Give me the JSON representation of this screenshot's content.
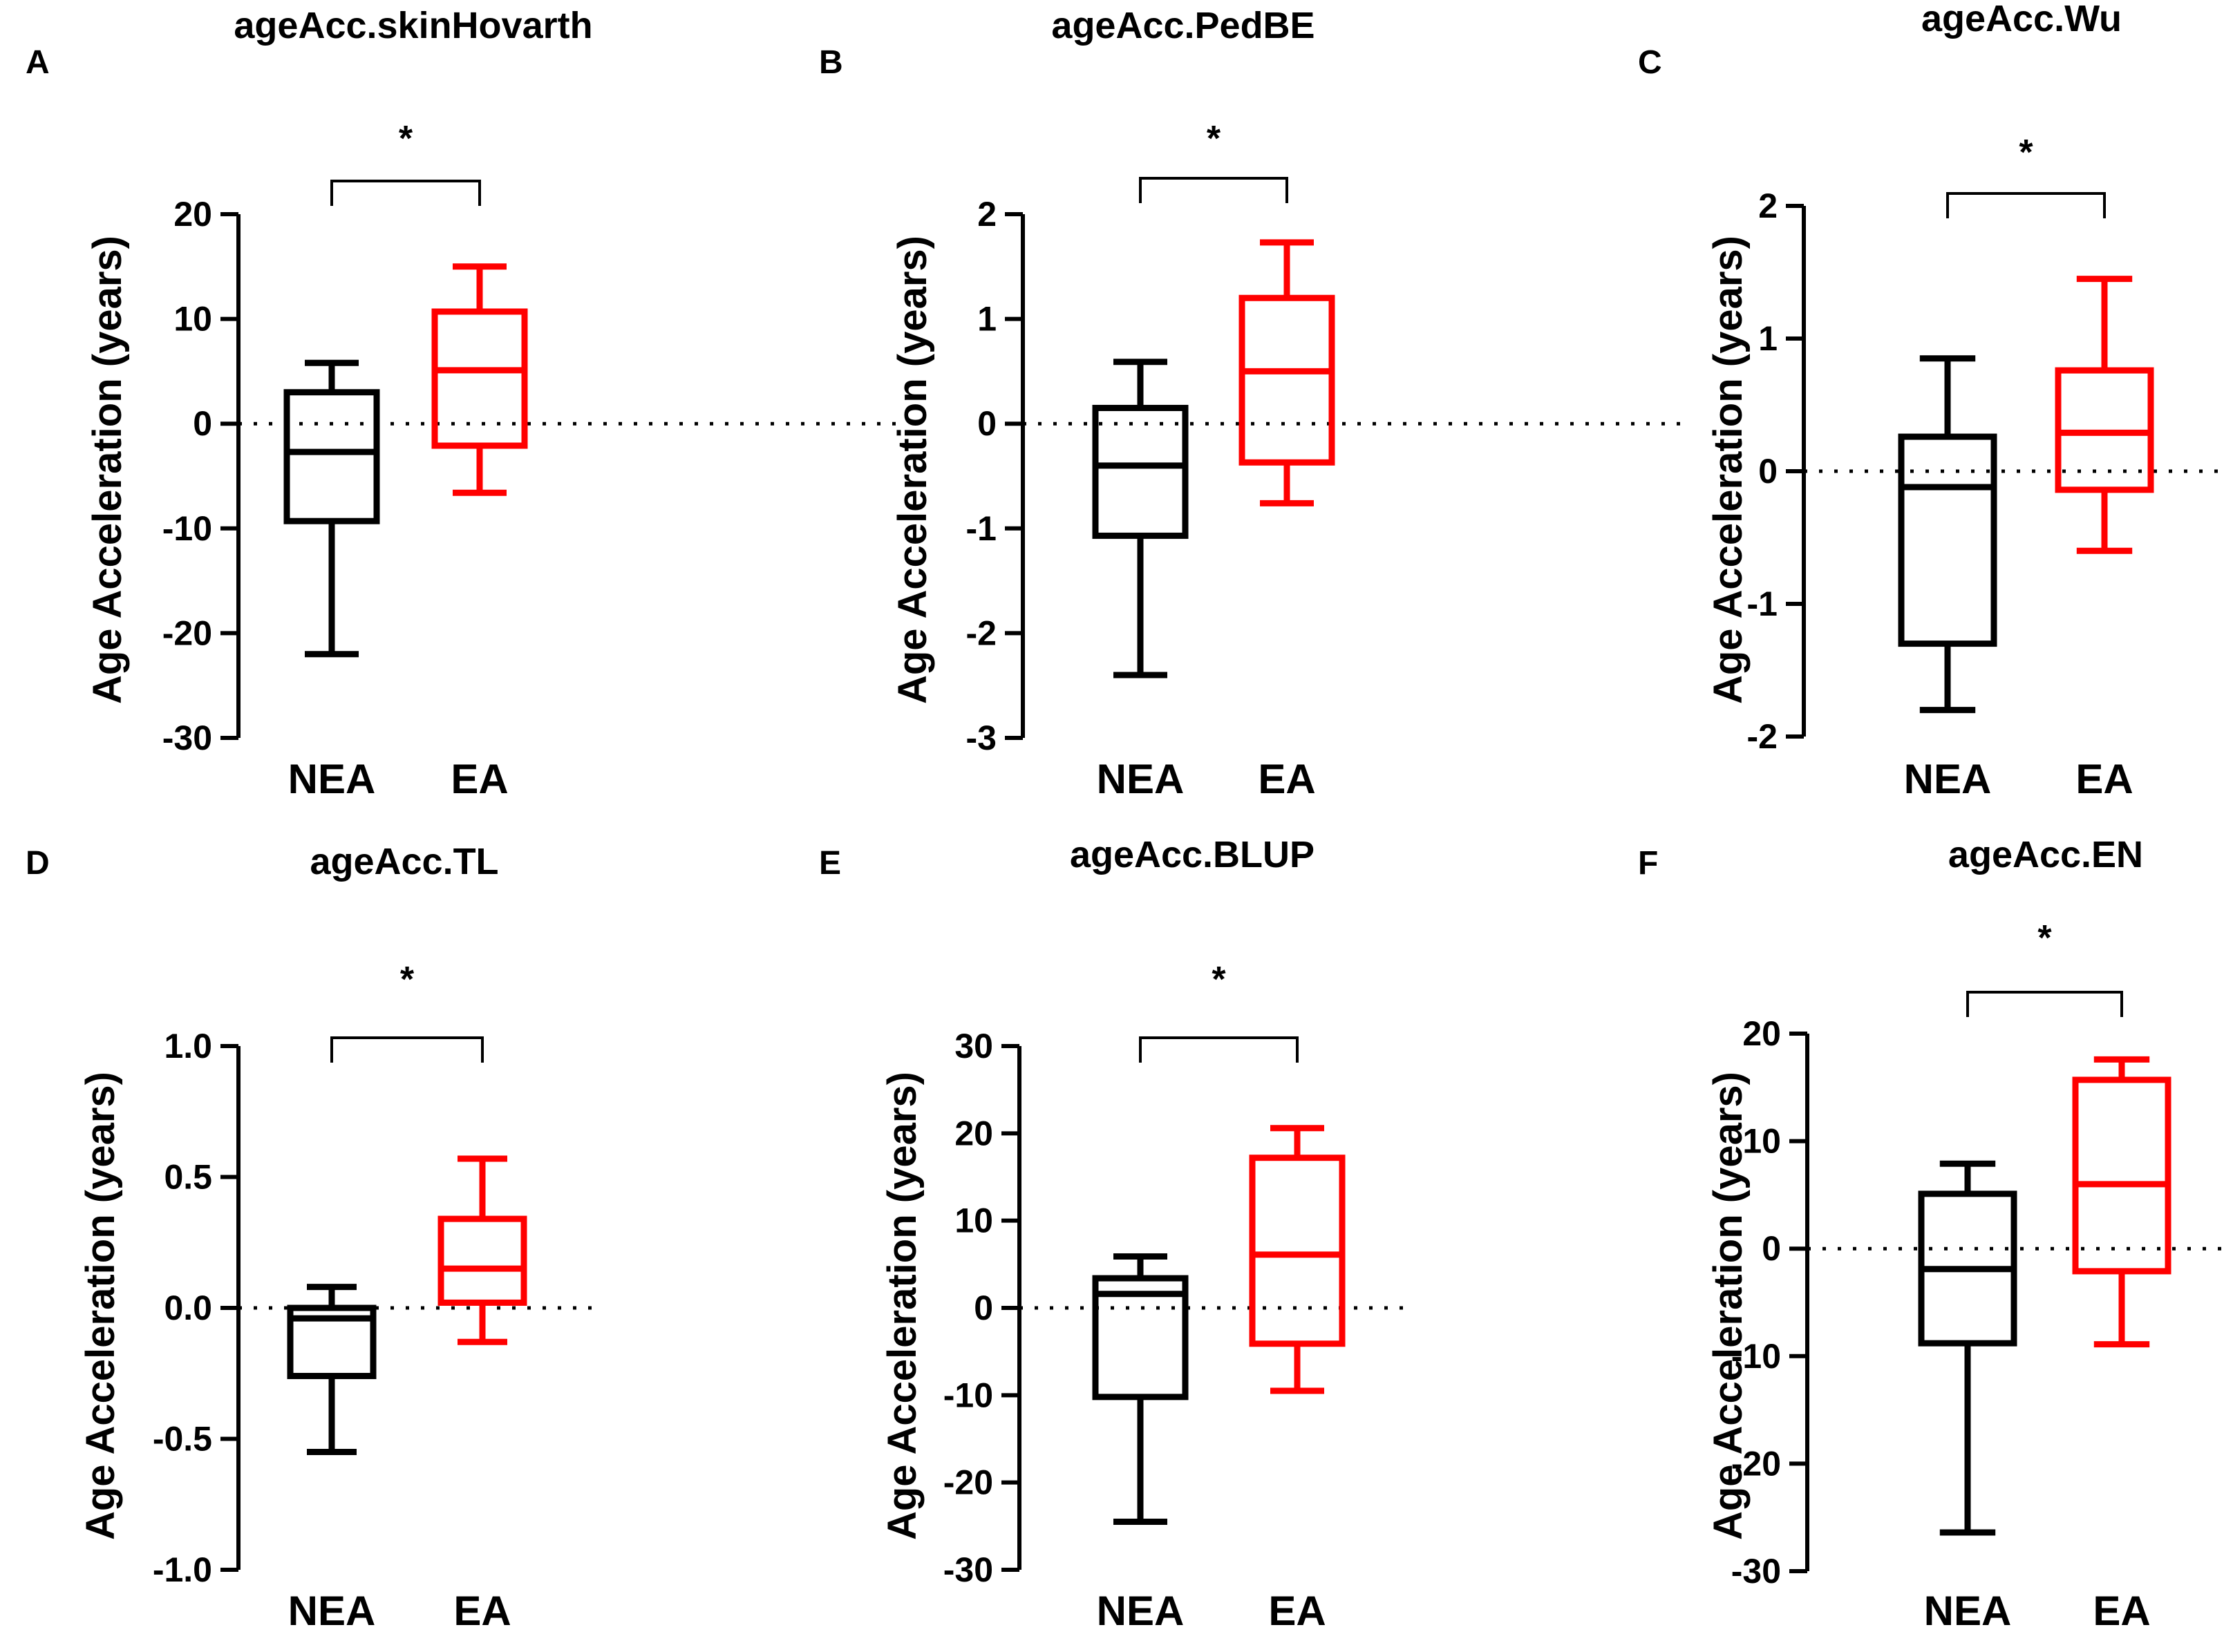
{
  "figure": {
    "colors": {
      "NEA": "#000000",
      "EA": "#ff0000"
    },
    "ylabel": "Age Acceleration (years)",
    "categories": [
      "NEA",
      "EA"
    ]
  },
  "chart_data": [
    {
      "panel": "A",
      "title": "ageAcc.skinHovarth",
      "type": "box",
      "ylabel": "Age Acceleration (years)",
      "ylim": [
        -30,
        20
      ],
      "yticks": [
        20,
        10,
        0,
        -10,
        -20,
        -30
      ],
      "ytick_labels": [
        "20",
        "10",
        "0",
        "-10",
        "-20",
        "-30"
      ],
      "reference_line": 0,
      "categories": [
        "NEA",
        "EA"
      ],
      "boxes": [
        {
          "name": "NEA",
          "min": -22,
          "q1": -9.3,
          "median": -2.7,
          "q3": 3.0,
          "max": 5.8
        },
        {
          "name": "EA",
          "min": -6.6,
          "q1": -2.1,
          "median": 5.1,
          "q3": 10.7,
          "max": 15.0
        }
      ],
      "significance": "*"
    },
    {
      "panel": "B",
      "title": "ageAcc.PedBE",
      "type": "box",
      "ylabel": "Age Acceleration (years)",
      "ylim": [
        -3,
        2
      ],
      "yticks": [
        2,
        1,
        0,
        -1,
        -2,
        -3
      ],
      "ytick_labels": [
        "2",
        "1",
        "0",
        "-1",
        "-2",
        "-3"
      ],
      "reference_line": 0,
      "categories": [
        "NEA",
        "EA"
      ],
      "boxes": [
        {
          "name": "NEA",
          "min": -2.4,
          "q1": -1.07,
          "median": -0.4,
          "q3": 0.15,
          "max": 0.59
        },
        {
          "name": "EA",
          "min": -0.76,
          "q1": -0.37,
          "median": 0.5,
          "q3": 1.2,
          "max": 1.73
        }
      ],
      "significance": "*"
    },
    {
      "panel": "C",
      "title": "ageAcc.Wu",
      "type": "box",
      "ylabel": "Age Acceleration (years)",
      "ylim": [
        -2,
        2
      ],
      "yticks": [
        2,
        1,
        0,
        -1,
        -2
      ],
      "ytick_labels": [
        "2",
        "1",
        "0",
        "-1",
        "-2"
      ],
      "reference_line": 0,
      "categories": [
        "NEA",
        "EA"
      ],
      "boxes": [
        {
          "name": "NEA",
          "min": -1.8,
          "q1": -1.3,
          "median": -0.12,
          "q3": 0.26,
          "max": 0.85
        },
        {
          "name": "EA",
          "min": -0.6,
          "q1": -0.14,
          "median": 0.29,
          "q3": 0.76,
          "max": 1.45
        }
      ],
      "significance": "*"
    },
    {
      "panel": "D",
      "title": "ageAcc.TL",
      "type": "box",
      "ylabel": "Age Acceleration (years)",
      "ylim": [
        -1.0,
        1.0
      ],
      "yticks": [
        1.0,
        0.5,
        0.0,
        -0.5,
        -1.0
      ],
      "ytick_labels": [
        "1.0",
        "0.5",
        "0.0",
        "-0.5",
        "-1.0"
      ],
      "reference_line": 0,
      "categories": [
        "NEA",
        "EA"
      ],
      "boxes": [
        {
          "name": "NEA",
          "min": -0.55,
          "q1": -0.26,
          "median": -0.04,
          "q3": 0.0,
          "max": 0.08
        },
        {
          "name": "EA",
          "min": -0.13,
          "q1": 0.02,
          "median": 0.15,
          "q3": 0.34,
          "max": 0.57
        }
      ],
      "significance": "*"
    },
    {
      "panel": "E",
      "title": "ageAcc.BLUP",
      "type": "box",
      "ylabel": "Age Acceleration (years)",
      "ylim": [
        -30,
        30
      ],
      "yticks": [
        30,
        20,
        10,
        0,
        -10,
        -20,
        -30
      ],
      "ytick_labels": [
        "30",
        "20",
        "10",
        "0",
        "-10",
        "-20",
        "-30"
      ],
      "reference_line": 0,
      "categories": [
        "NEA",
        "EA"
      ],
      "boxes": [
        {
          "name": "NEA",
          "min": -24.5,
          "q1": -10.2,
          "median": 1.6,
          "q3": 3.4,
          "max": 5.9
        },
        {
          "name": "EA",
          "min": -9.5,
          "q1": -4.1,
          "median": 6.1,
          "q3": 17.2,
          "max": 20.6
        }
      ],
      "significance": "*"
    },
    {
      "panel": "F",
      "title": "ageAcc.EN",
      "type": "box",
      "ylabel": "Age Acceleration (years)",
      "ylim": [
        -30,
        20
      ],
      "yticks": [
        20,
        10,
        0,
        -10,
        -20,
        -30
      ],
      "ytick_labels": [
        "20",
        "10",
        "0",
        "-10",
        "-20",
        "-30"
      ],
      "reference_line": 0,
      "categories": [
        "NEA",
        "EA"
      ],
      "boxes": [
        {
          "name": "NEA",
          "min": -26.4,
          "q1": -8.8,
          "median": -1.9,
          "q3": 5.1,
          "max": 7.9
        },
        {
          "name": "EA",
          "min": -8.9,
          "q1": -2.1,
          "median": 6.0,
          "q3": 15.7,
          "max": 17.6
        }
      ],
      "significance": "*"
    }
  ]
}
